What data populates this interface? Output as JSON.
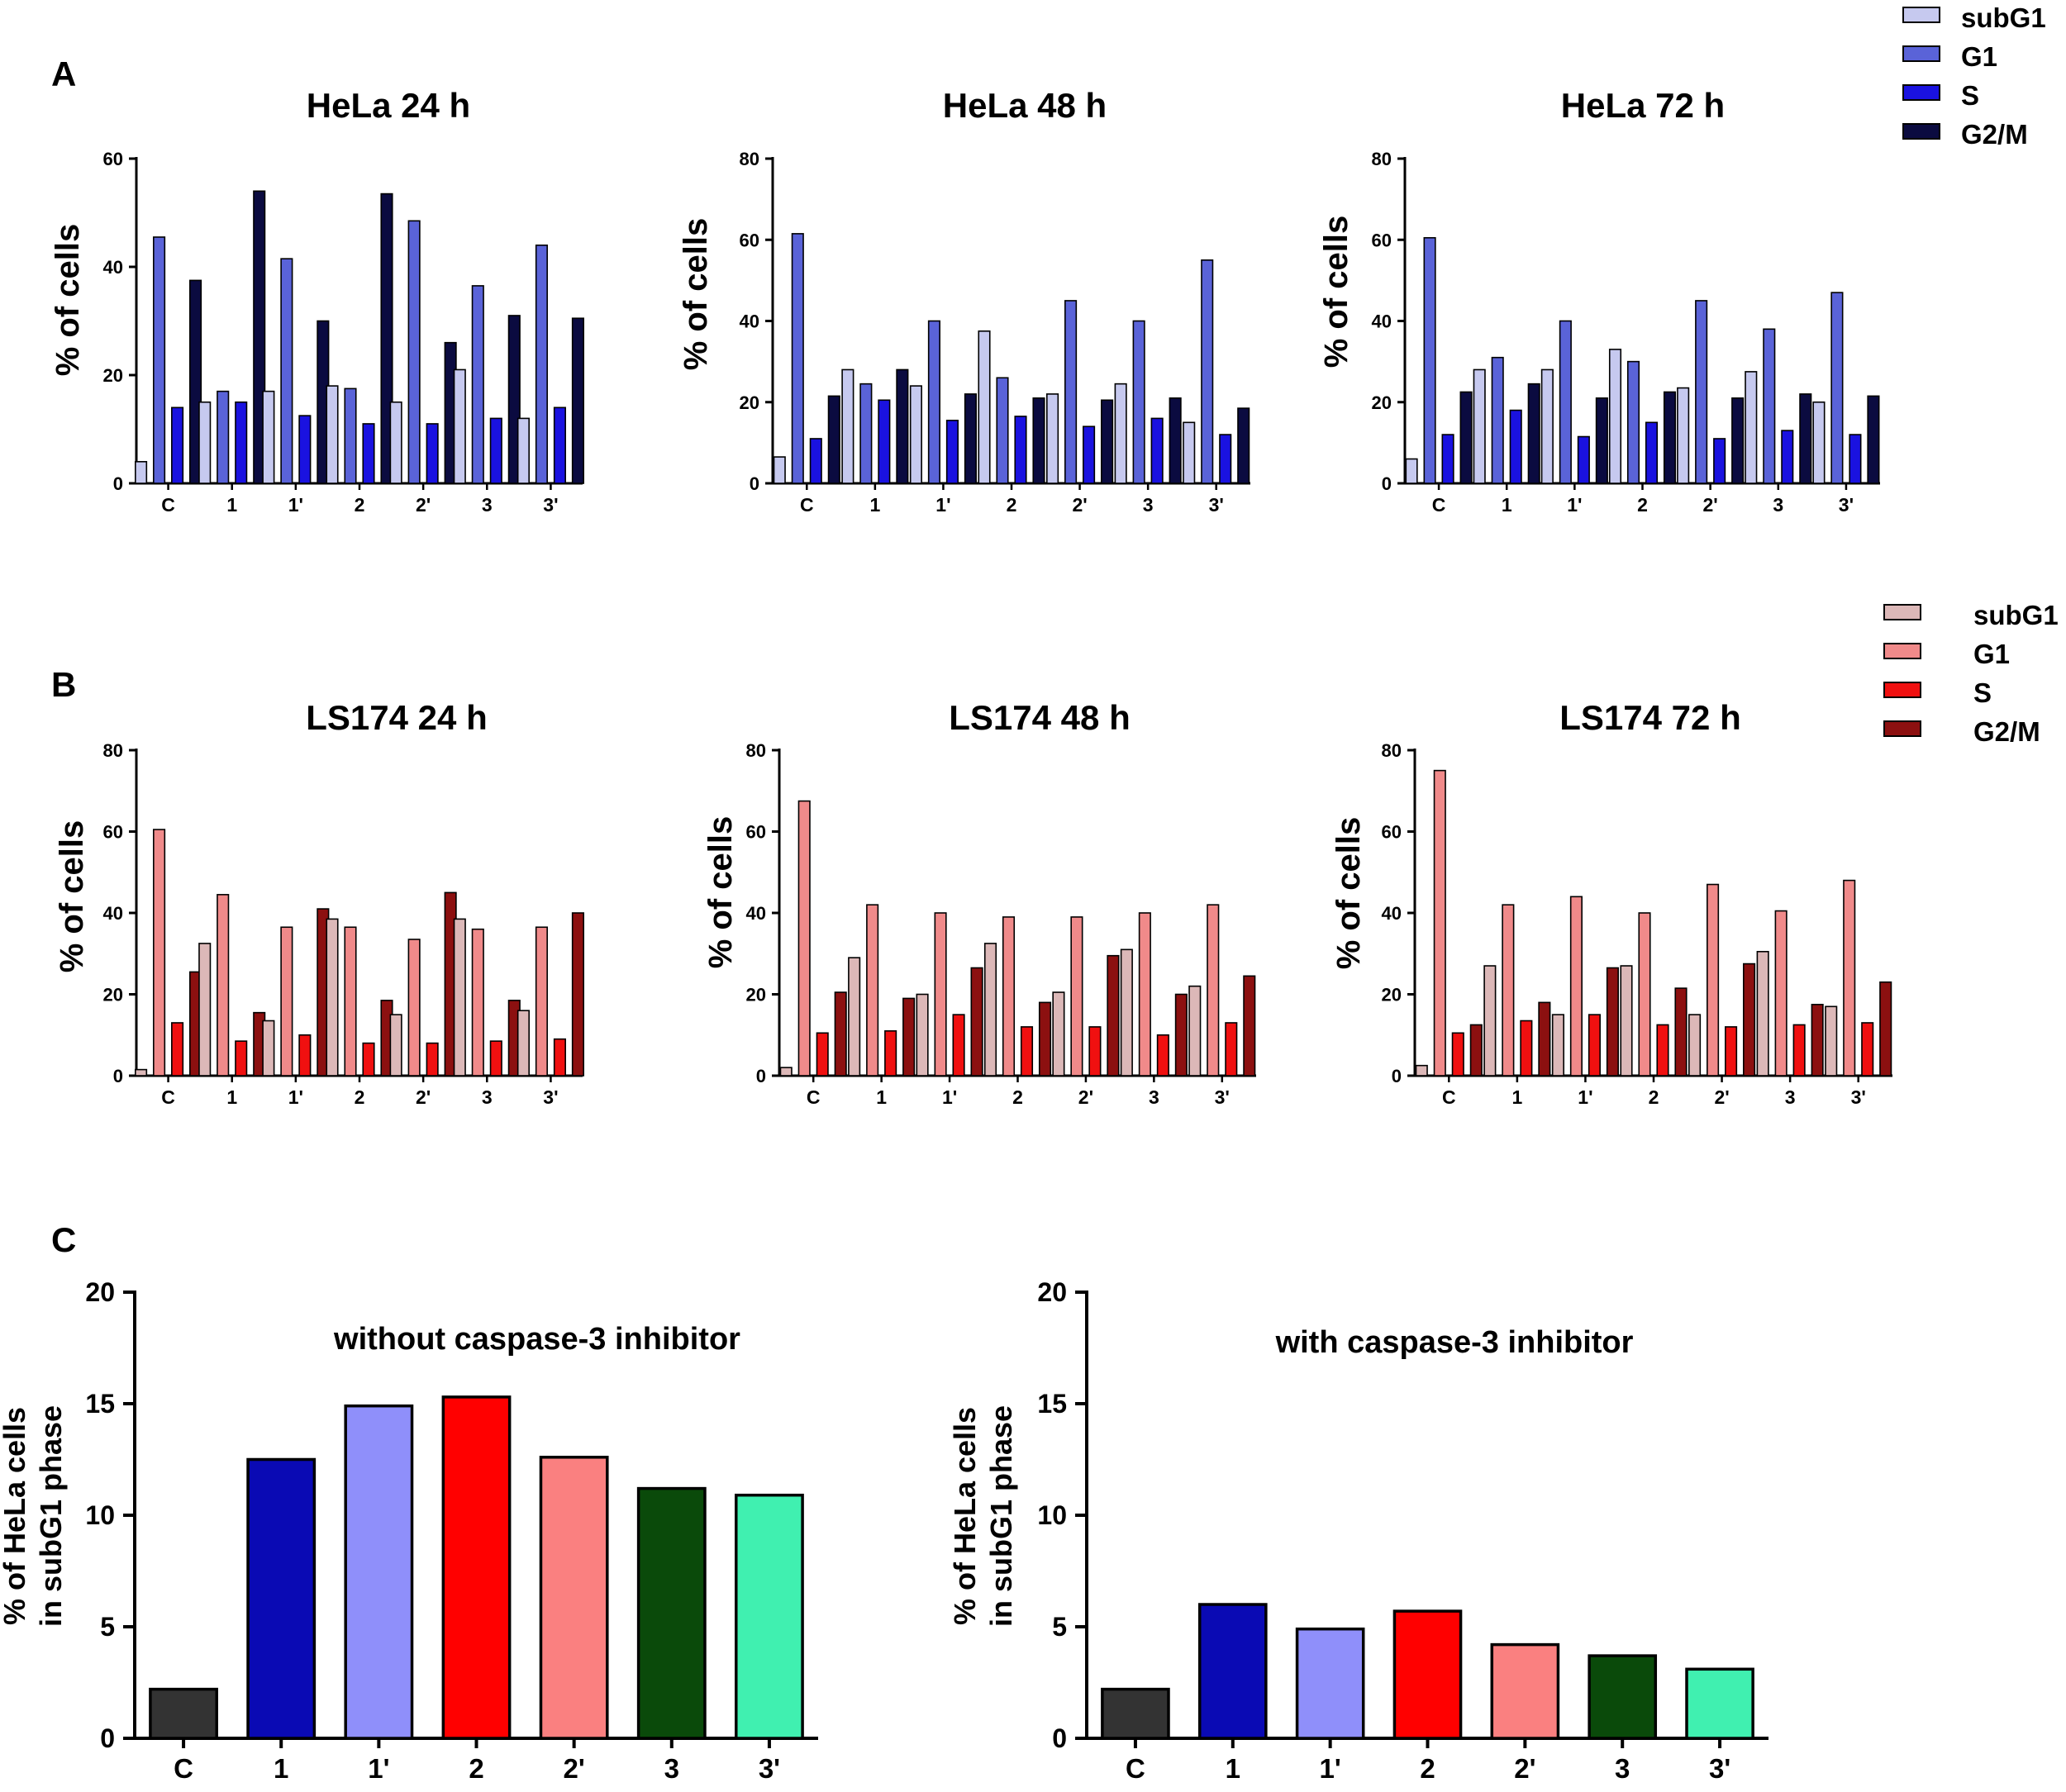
{
  "panels": {
    "A": "A",
    "B": "B",
    "C": "C"
  },
  "legends": {
    "hela": {
      "entries": [
        "subG1",
        "G1",
        "S",
        "G2/M"
      ],
      "colors": [
        "#c6c9ef",
        "#5a63d8",
        "#1a12e0",
        "#0b0b40"
      ]
    },
    "ls174": {
      "entries": [
        "subG1",
        "G1",
        "S",
        "G2/M"
      ],
      "colors": [
        "#dcb8b8",
        "#f08a8a",
        "#f01010",
        "#8c1010"
      ]
    }
  },
  "chart_data": [
    {
      "id": "hela24",
      "type": "bar",
      "title": "HeLa 24 h",
      "ylabel": "% of cells",
      "xlabel": "",
      "ylim": [
        0,
        60
      ],
      "yticks": [
        0,
        20,
        40,
        60
      ],
      "categories": [
        "C",
        "1",
        "1'",
        "2",
        "2'",
        "3",
        "3'"
      ],
      "series": [
        {
          "name": "subG1",
          "values": [
            4,
            15,
            17,
            18,
            15,
            21,
            12
          ]
        },
        {
          "name": "G1",
          "values": [
            45.5,
            17,
            41.5,
            17.5,
            48.5,
            36.5,
            44
          ]
        },
        {
          "name": "S",
          "values": [
            14,
            15,
            12.5,
            11,
            11,
            12,
            14
          ]
        },
        {
          "name": "G2/M",
          "values": [
            37.5,
            54,
            30,
            53.5,
            26,
            31,
            30.5
          ]
        }
      ]
    },
    {
      "id": "hela48",
      "type": "bar",
      "title": "HeLa 48 h",
      "ylabel": "% of cells",
      "xlabel": "",
      "ylim": [
        0,
        80
      ],
      "yticks": [
        0,
        20,
        40,
        60,
        80
      ],
      "categories": [
        "C",
        "1",
        "1'",
        "2",
        "2'",
        "3",
        "3'"
      ],
      "series": [
        {
          "name": "subG1",
          "values": [
            6.5,
            28,
            24,
            37.5,
            22,
            24.5,
            15
          ]
        },
        {
          "name": "G1",
          "values": [
            61.5,
            24.5,
            40,
            26,
            45,
            40,
            55
          ]
        },
        {
          "name": "S",
          "values": [
            11,
            20.5,
            15.5,
            16.5,
            14,
            16,
            12
          ]
        },
        {
          "name": "G2/M",
          "values": [
            21.5,
            28,
            22,
            21,
            20.5,
            21,
            18.5
          ]
        }
      ]
    },
    {
      "id": "hela72",
      "type": "bar",
      "title": "HeLa 72 h",
      "ylabel": "% of cells",
      "xlabel": "",
      "ylim": [
        0,
        80
      ],
      "yticks": [
        0,
        20,
        40,
        60,
        80
      ],
      "categories": [
        "C",
        "1",
        "1'",
        "2",
        "2'",
        "3",
        "3'"
      ],
      "series": [
        {
          "name": "subG1",
          "values": [
            6,
            28,
            28,
            33,
            23.5,
            27.5,
            20
          ]
        },
        {
          "name": "G1",
          "values": [
            60.5,
            31,
            40,
            30,
            45,
            38,
            47
          ]
        },
        {
          "name": "S",
          "values": [
            12,
            18,
            11.5,
            15,
            11,
            13,
            12
          ]
        },
        {
          "name": "G2/M",
          "values": [
            22.5,
            24.5,
            21,
            22.5,
            21,
            22,
            21.5
          ]
        }
      ]
    },
    {
      "id": "ls24",
      "type": "bar",
      "title": "LS174 24 h",
      "ylabel": "% of cells",
      "xlabel": "",
      "ylim": [
        0,
        80
      ],
      "yticks": [
        0,
        20,
        40,
        60,
        80
      ],
      "categories": [
        "C",
        "1",
        "1'",
        "2",
        "2'",
        "3",
        "3'"
      ],
      "series": [
        {
          "name": "subG1",
          "values": [
            1.5,
            32.5,
            13.5,
            38.5,
            15,
            38.5,
            16
          ]
        },
        {
          "name": "G1",
          "values": [
            60.5,
            44.5,
            36.5,
            36.5,
            33.5,
            36,
            36.5
          ]
        },
        {
          "name": "S",
          "values": [
            13,
            8.5,
            10,
            8,
            8,
            8.5,
            9
          ]
        },
        {
          "name": "G2/M",
          "values": [
            25.5,
            15.5,
            41,
            18.5,
            45,
            18.5,
            40
          ]
        }
      ]
    },
    {
      "id": "ls48",
      "type": "bar",
      "title": "LS174 48 h",
      "ylabel": "% of cells",
      "xlabel": "",
      "ylim": [
        0,
        80
      ],
      "yticks": [
        0,
        20,
        40,
        60,
        80
      ],
      "categories": [
        "C",
        "1",
        "1'",
        "2",
        "2'",
        "3",
        "3'"
      ],
      "series": [
        {
          "name": "subG1",
          "values": [
            2,
            29,
            20,
            32.5,
            20.5,
            31,
            22
          ]
        },
        {
          "name": "G1",
          "values": [
            67.5,
            42,
            40,
            39,
            39,
            40,
            42
          ]
        },
        {
          "name": "S",
          "values": [
            10.5,
            11,
            15,
            12,
            12,
            10,
            13
          ]
        },
        {
          "name": "G2/M",
          "values": [
            20.5,
            19,
            26.5,
            18,
            29.5,
            20,
            24.5
          ]
        }
      ]
    },
    {
      "id": "ls72",
      "type": "bar",
      "title": "LS174 72 h",
      "ylabel": "% of cells",
      "xlabel": "",
      "ylim": [
        0,
        80
      ],
      "yticks": [
        0,
        20,
        40,
        60,
        80
      ],
      "categories": [
        "C",
        "1",
        "1'",
        "2",
        "2'",
        "3",
        "3'"
      ],
      "series": [
        {
          "name": "subG1",
          "values": [
            2.5,
            27,
            15,
            27,
            15,
            30.5,
            17
          ]
        },
        {
          "name": "G1",
          "values": [
            75,
            42,
            44,
            40,
            47,
            40.5,
            48
          ]
        },
        {
          "name": "S",
          "values": [
            10.5,
            13.5,
            15,
            12.5,
            12,
            12.5,
            13
          ]
        },
        {
          "name": "G2/M",
          "values": [
            12.5,
            18,
            26.5,
            21.5,
            27.5,
            17.5,
            23
          ]
        }
      ]
    },
    {
      "id": "c_without",
      "type": "bar",
      "title": "without caspase-3 inhibitor",
      "ylabel": "% of HeLa cells in subG1 phase",
      "ylabel_lines": [
        "% of HeLa cells",
        "in subG1 phase"
      ],
      "xlabel": "",
      "ylim": [
        0,
        20
      ],
      "yticks": [
        0,
        5,
        10,
        15,
        20
      ],
      "categories": [
        "C",
        "1",
        "1'",
        "2",
        "2'",
        "3",
        "3'"
      ],
      "values": [
        2.2,
        12.5,
        14.9,
        15.3,
        12.6,
        11.2,
        10.9
      ],
      "colors": [
        "#333333",
        "#0a0ab4",
        "#8f8ffa",
        "#ff0000",
        "#fa8080",
        "#0a4a0a",
        "#40f0b0"
      ]
    },
    {
      "id": "c_with",
      "type": "bar",
      "title": "with caspase-3 inhibitor",
      "ylabel": "% of HeLa cells in subG1 phase",
      "ylabel_lines": [
        "% of HeLa cells",
        "in subG1 phase"
      ],
      "xlabel": "",
      "ylim": [
        0,
        20
      ],
      "yticks": [
        0,
        5,
        10,
        15,
        20
      ],
      "categories": [
        "C",
        "1",
        "1'",
        "2",
        "2'",
        "3",
        "3'"
      ],
      "values": [
        2.2,
        6.0,
        4.9,
        5.7,
        4.2,
        3.7,
        3.1
      ],
      "colors": [
        "#333333",
        "#0a0ab4",
        "#8f8ffa",
        "#ff0000",
        "#fa8080",
        "#0a4a0a",
        "#40f0b0"
      ]
    }
  ]
}
